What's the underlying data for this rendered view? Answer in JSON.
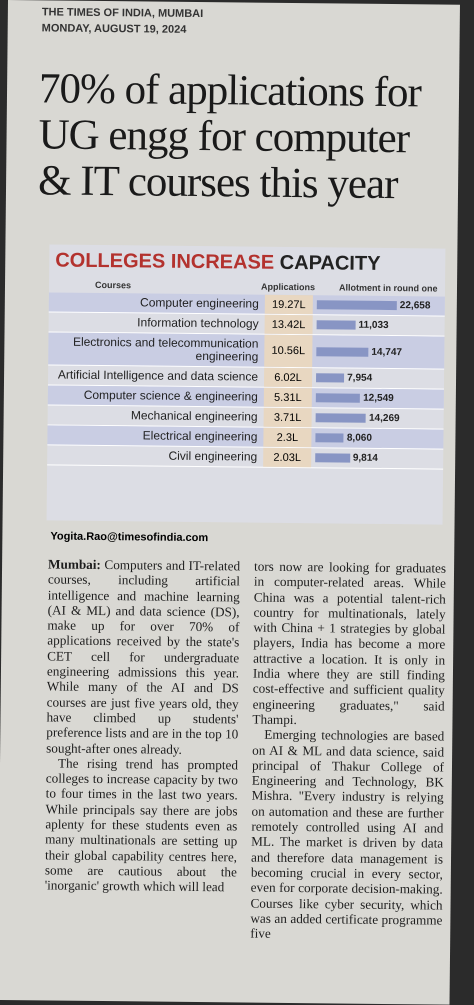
{
  "header": {
    "masthead": "THE TIMES OF INDIA, MUMBAI",
    "date": "MONDAY, AUGUST 19, 2024"
  },
  "headline": "70% of applications for UG engg for computer & IT courses this year",
  "graphic": {
    "title_left": "COLLEGES INCREASE",
    "title_right": "CAPACITY",
    "headers": [
      "Courses",
      "Applications",
      "Allotment in round one"
    ],
    "rows": [
      {
        "course": "Computer engineering",
        "applications": "19.27L",
        "allotment": 22658,
        "allotment_label": "22,658"
      },
      {
        "course": "Information technology",
        "applications": "13.42L",
        "allotment": 11033,
        "allotment_label": "11,033"
      },
      {
        "course": "Electronics and telecommunication engineering",
        "applications": "10.56L",
        "allotment": 14747,
        "allotment_label": "14,747"
      },
      {
        "course": "Artificial Intelligence and data science",
        "applications": "6.02L",
        "allotment": 7954,
        "allotment_label": "7,954"
      },
      {
        "course": "Computer science & engineering",
        "applications": "5.31L",
        "allotment": 12549,
        "allotment_label": "12,549"
      },
      {
        "course": "Mechanical engineering",
        "applications": "3.71L",
        "allotment": 14269,
        "allotment_label": "14,269"
      },
      {
        "course": "Electrical engineering",
        "applications": "2.3L",
        "allotment": 8060,
        "allotment_label": "8,060"
      },
      {
        "course": "Civil engineering",
        "applications": "2.03L",
        "allotment": 9814,
        "allotment_label": "9,814"
      }
    ]
  },
  "byline": "Yogita.Rao@timesofindia.com",
  "article": {
    "dateline": "Mumbai:",
    "col1": [
      "Computers and IT-related courses, including artificial intelligence and machine learning (AI & ML) and data science (DS), make up for over 70% of applications received by the state's CET cell for undergraduate engineering admissions this year. While many of the AI and DS courses are just five years old, they have climbed up students' preference lists and are in the top 10 sought-after ones already.",
      "The rising trend has prompted colleges to increase capacity by two to four times in the last two years. While principals say there are jobs aplenty for these students even as many multinationals are setting up their global capability centres here, some are cautious about the 'inorganic' growth which will lead"
    ],
    "col2": [
      "tors now are looking for graduates in computer-related areas. While China was a potential talent-rich country for multinationals, lately with China + 1 strategies by global players, India has become a more attractive a location. It is only in India where they are still finding cost-effective and sufficient quality engineering graduates,\" said Thampi.",
      "Emerging technologies are based on AI & ML and data science, said principal of Thakur College of Engineering and Technology, BK Mishra. \"Every industry is relying on automation and these are further remotely controlled using AI and ML. The market is driven by data and therefore data management is becoming crucial in every sector, even for corporate decision-making. Courses like cyber security, which was an added certificate programme five"
    ]
  }
}
